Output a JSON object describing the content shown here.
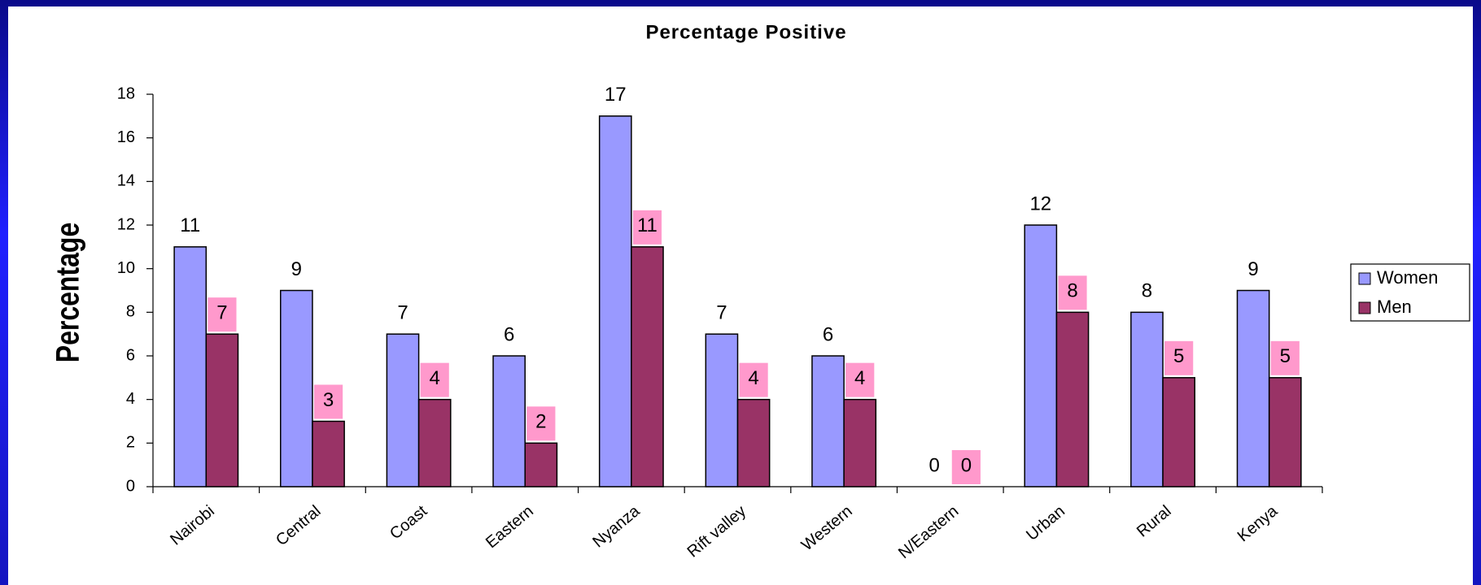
{
  "chart_data": {
    "type": "bar",
    "title": "Percentage Positive",
    "y_label": "Percentage",
    "categories": [
      "Nairobi",
      "Central",
      "Coast",
      "Eastern",
      "Nyanza",
      "Rift valley",
      "Western",
      "N/Eastern",
      "Urban",
      "Rural",
      "Kenya"
    ],
    "series": [
      {
        "name": "Women",
        "color": "#9999ff",
        "values": [
          11,
          9,
          7,
          6,
          17,
          7,
          6,
          0,
          12,
          8,
          9
        ]
      },
      {
        "name": "Men",
        "color": "#993366",
        "values": [
          7,
          3,
          4,
          2,
          11,
          4,
          4,
          0,
          8,
          5,
          5
        ]
      }
    ],
    "ylim": [
      0,
      18
    ],
    "yticks": [
      0,
      2,
      4,
      6,
      8,
      10,
      12,
      14,
      16,
      18
    ],
    "legend": "right"
  }
}
